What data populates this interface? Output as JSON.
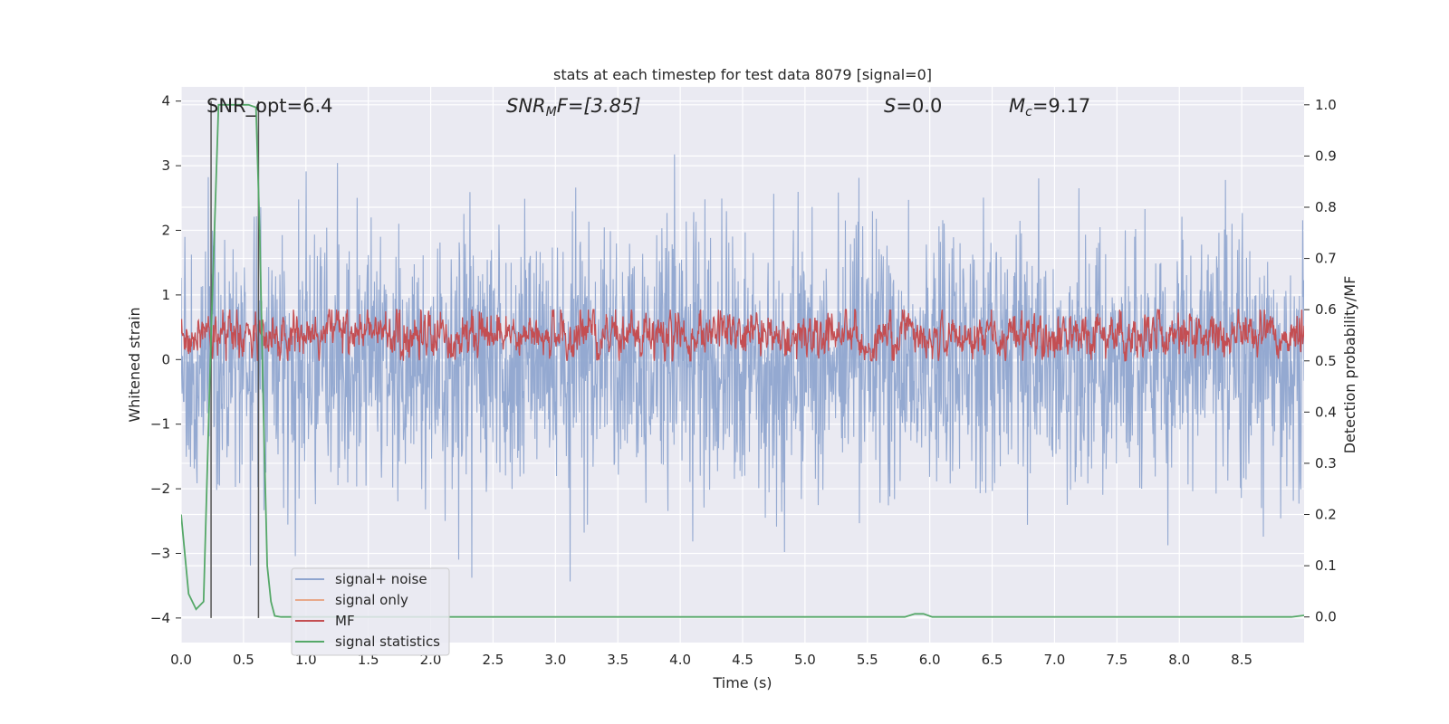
{
  "chart_data": {
    "type": "line",
    "title": "stats at each timestep for test data 8079 [signal=0]",
    "xlabel": "Time (s)",
    "ylabel_left": "Whitened strain",
    "ylabel_right": "Detection probability/MF",
    "xlim": [
      0,
      9.0
    ],
    "ylim_left": [
      -4.38,
      4.22
    ],
    "ylim_right": [
      -0.05,
      1.035
    ],
    "xticks": [
      "0.0",
      "0.5",
      "1.0",
      "1.5",
      "2.0",
      "2.5",
      "3.0",
      "3.5",
      "4.0",
      "4.5",
      "5.0",
      "5.5",
      "6.0",
      "6.5",
      "7.0",
      "7.5",
      "8.0",
      "8.5"
    ],
    "yticks_left": [
      "4",
      "3",
      "2",
      "1",
      "0",
      "−1",
      "−2",
      "−3",
      "−4"
    ],
    "yticks_right": [
      "1.0",
      "0.9",
      "0.8",
      "0.7",
      "0.6",
      "0.5",
      "0.4",
      "0.3",
      "0.2",
      "0.1",
      "0.0"
    ],
    "grid": true,
    "legend_placement": "lower-left",
    "annotations": {
      "snr_opt": "SNR_opt=6.4",
      "snr_mf_sym": "SNR",
      "snr_mf_sub": "M",
      "snr_mf_rest": "F=[3.85]",
      "s_sym": "S",
      "s_rest": "=0.0",
      "mc_sym": "M",
      "mc_sub": "c",
      "mc_rest": "=9.17"
    },
    "vlines_x": [
      0.24,
      0.62
    ],
    "series": [
      {
        "name": "signal+ noise",
        "color": "#8fa5cf",
        "axis": "left",
        "description": "whitened noise, approx. Gaussian, std ~1, peaks to about +/-4 over 0-9 s",
        "x_range": [
          0,
          9.0
        ],
        "std": 1.0,
        "peak_max": 3.88,
        "peak_min": -3.98
      },
      {
        "name": "signal only",
        "color": "#e8a98a",
        "axis": "left",
        "x": [],
        "y": []
      },
      {
        "name": "MF",
        "color": "#c44e52",
        "axis": "right",
        "x_range": [
          0,
          9.0
        ],
        "center": 0.55,
        "spread": 0.03,
        "peak_max": 0.6,
        "peak_min": 0.5
      },
      {
        "name": "signal statistics",
        "color": "#55a868",
        "axis": "right",
        "x": [
          0.0,
          0.06,
          0.12,
          0.18,
          0.24,
          0.3,
          0.36,
          0.42,
          0.48,
          0.54,
          0.6,
          0.63,
          0.66,
          0.69,
          0.72,
          0.75,
          0.8,
          5.8,
          5.88,
          5.95,
          6.02,
          8.9,
          9.0
        ],
        "y": [
          0.2,
          0.045,
          0.015,
          0.03,
          0.55,
          1.0,
          1.0,
          1.0,
          1.0,
          1.0,
          0.995,
          0.75,
          0.4,
          0.1,
          0.03,
          0.002,
          0.0,
          0.0,
          0.006,
          0.006,
          0.0,
          0.0,
          0.003
        ]
      }
    ]
  }
}
